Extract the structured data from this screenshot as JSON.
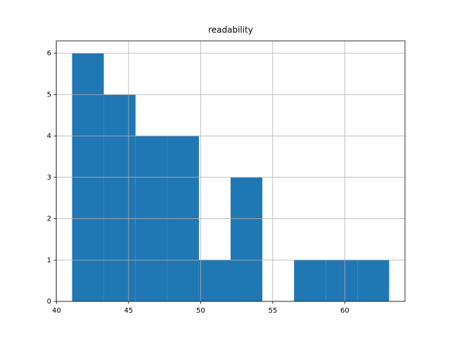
{
  "chart_data": {
    "type": "histogram",
    "title": "readability",
    "bins": [
      41.08,
      43.28,
      45.48,
      47.68,
      49.88,
      52.08,
      54.28,
      56.48,
      58.68,
      60.88,
      63.08
    ],
    "values": [
      6,
      5,
      4,
      4,
      1,
      3,
      0,
      1,
      1,
      1
    ],
    "color": "#1f77b4",
    "xlim": [
      39.98,
      64.18
    ],
    "xticks": [
      40,
      45,
      50,
      55,
      60
    ],
    "ylim": [
      0,
      6.3
    ],
    "yticks": [
      0,
      1,
      2,
      3,
      4,
      5,
      6
    ],
    "grid": true
  }
}
